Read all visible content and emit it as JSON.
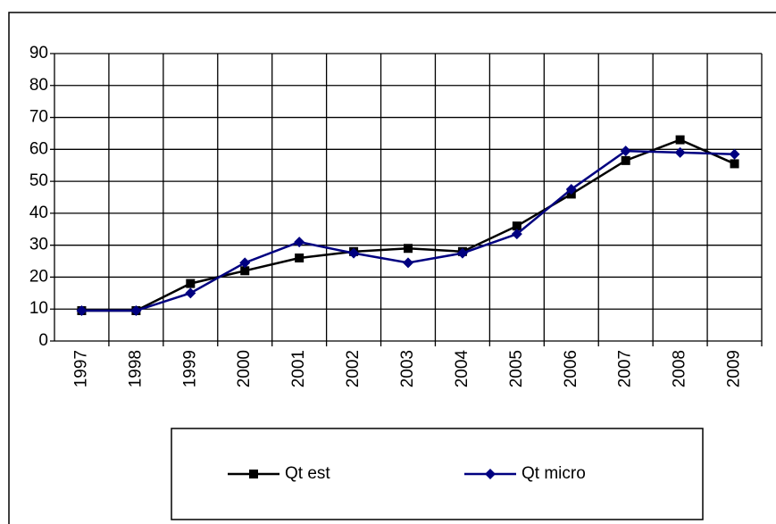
{
  "chart_data": {
    "type": "line",
    "categories": [
      "1997",
      "1998",
      "1999",
      "2000",
      "2001",
      "2002",
      "2003",
      "2004",
      "2005",
      "2006",
      "2007",
      "2008",
      "2009"
    ],
    "series": [
      {
        "name": "Qt est",
        "color": "#000000",
        "marker": "square",
        "values": [
          9.5,
          9.5,
          18,
          22,
          26,
          28,
          29,
          28,
          36,
          46,
          56.5,
          63,
          55.5
        ]
      },
      {
        "name": "Qt micro",
        "color": "#000080",
        "marker": "diamond",
        "values": [
          9.5,
          9.5,
          15,
          24.5,
          31,
          27.5,
          24.5,
          27.5,
          33.5,
          47.5,
          59.5,
          59,
          58.5
        ]
      }
    ],
    "ylim": [
      0,
      90
    ],
    "yticks": [
      0,
      10,
      20,
      30,
      40,
      50,
      60,
      70,
      80,
      90
    ],
    "grid": true,
    "legend": "bottom"
  }
}
